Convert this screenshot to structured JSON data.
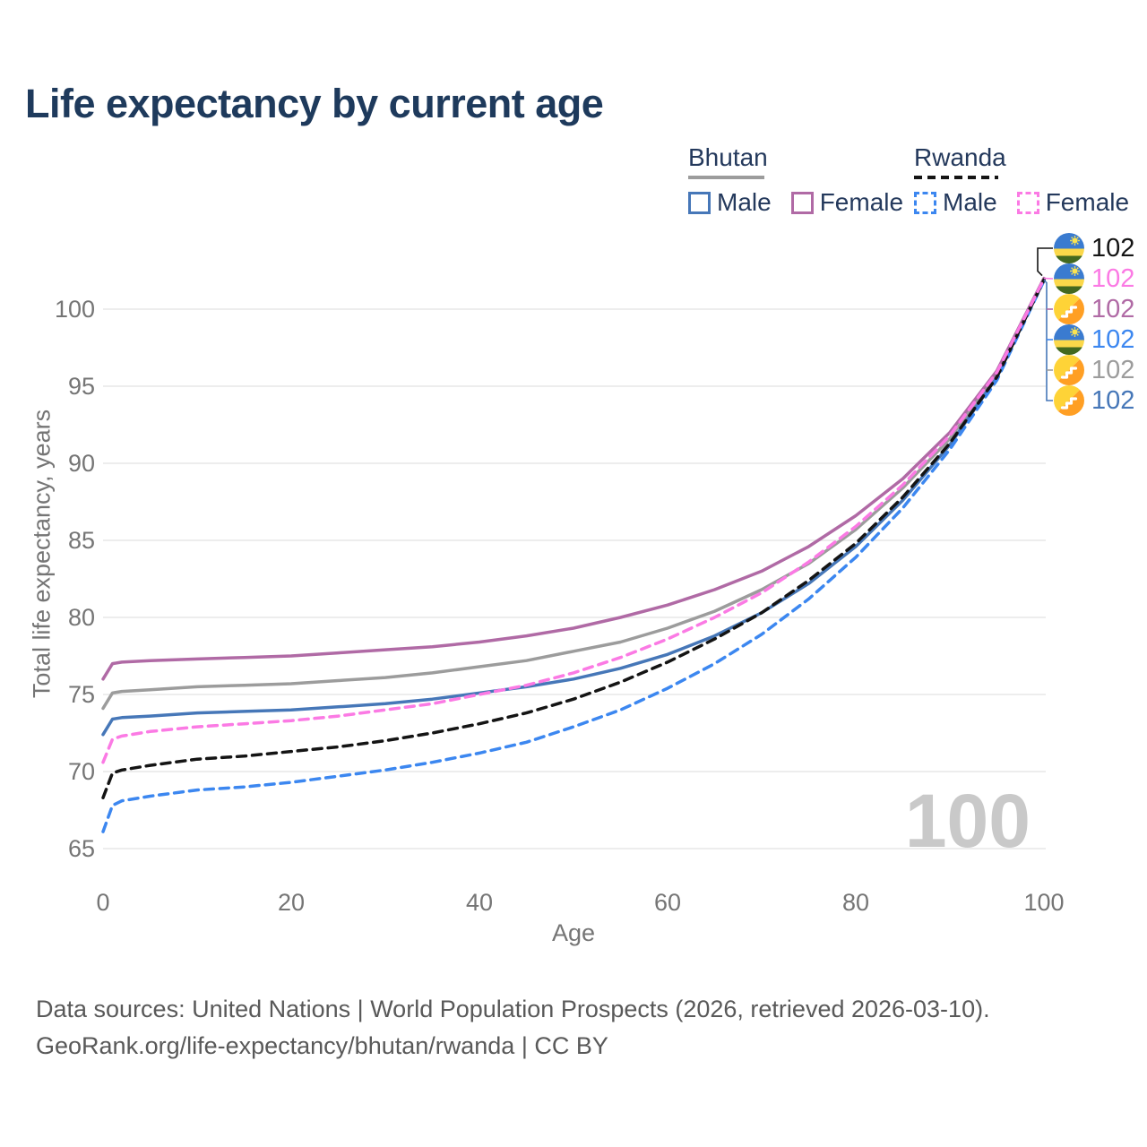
{
  "title": "Life expectancy by current age",
  "legend": {
    "groups": [
      {
        "name": "Bhutan",
        "style": "solid",
        "items": [
          {
            "label": "Male",
            "color": "#4677b8"
          },
          {
            "label": "Female",
            "color": "#b06aa5"
          }
        ]
      },
      {
        "name": "Rwanda",
        "style": "dashed",
        "items": [
          {
            "label": "Male",
            "color": "#3c87f0"
          },
          {
            "label": "Female",
            "color": "#fb7ae4"
          }
        ]
      }
    ]
  },
  "watermark": "100",
  "footer": {
    "line1": "Data sources: United Nations | World Population Prospects (2026, retrieved 2026-03-10).",
    "line2": "GeoRank.org/life-expectancy/bhutan/rwanda | CC BY"
  },
  "colors": {
    "title_text": "#1e3a5c",
    "legend_text": "#24395c",
    "axis_text": "#757575",
    "gridline": "#e7e7e7",
    "watermark": "#c9c9c9",
    "bhutan_male": "#4677b8",
    "bhutan_female": "#b06aa5",
    "bhutan_both": "#9c9c9c",
    "rwanda_male": "#3c87f0",
    "rwanda_female": "#fb7ae4",
    "rwanda_both": "#141414"
  },
  "chart_data": {
    "type": "line",
    "title": "Life expectancy by current age",
    "xlabel": "Age",
    "ylabel": "Total life expectancy, years",
    "xlim": [
      0,
      100
    ],
    "ylim": [
      65,
      102
    ],
    "xticks": [
      0,
      20,
      40,
      60,
      80,
      100
    ],
    "yticks": [
      65,
      70,
      75,
      80,
      85,
      90,
      95,
      100
    ],
    "grid": "horizontal",
    "legend_position": "top-right",
    "x": [
      0,
      1,
      2,
      5,
      10,
      15,
      20,
      25,
      30,
      35,
      40,
      45,
      50,
      55,
      60,
      65,
      70,
      75,
      80,
      85,
      90,
      95,
      100
    ],
    "series": [
      {
        "name": "Bhutan Both",
        "country": "Bhutan",
        "sex": "Both",
        "color": "#9c9c9c",
        "dash": "solid",
        "values": [
          74.1,
          75.1,
          75.2,
          75.3,
          75.5,
          75.6,
          75.7,
          75.9,
          76.1,
          76.4,
          76.8,
          77.2,
          77.8,
          78.4,
          79.3,
          80.4,
          81.8,
          83.5,
          85.7,
          88.4,
          91.6,
          95.8,
          101.95
        ]
      },
      {
        "name": "Bhutan Male",
        "country": "Bhutan",
        "sex": "Male",
        "color": "#4677b8",
        "dash": "solid",
        "values": [
          72.4,
          73.4,
          73.5,
          73.6,
          73.8,
          73.9,
          74.0,
          74.2,
          74.4,
          74.7,
          75.1,
          75.5,
          76.0,
          76.7,
          77.6,
          78.8,
          80.3,
          82.2,
          84.6,
          87.6,
          91.2,
          95.6,
          101.9
        ]
      },
      {
        "name": "Bhutan Female",
        "country": "Bhutan",
        "sex": "Female",
        "color": "#b06aa5",
        "dash": "solid",
        "values": [
          76.0,
          77.0,
          77.1,
          77.2,
          77.3,
          77.4,
          77.5,
          77.7,
          77.9,
          78.1,
          78.4,
          78.8,
          79.3,
          80.0,
          80.8,
          81.8,
          83.0,
          84.6,
          86.6,
          89.0,
          92.0,
          96.0,
          102.0
        ]
      },
      {
        "name": "Rwanda Male",
        "country": "Rwanda",
        "sex": "Male",
        "color": "#3c87f0",
        "dash": "dashed",
        "values": [
          66.1,
          67.8,
          68.1,
          68.4,
          68.8,
          69.0,
          69.3,
          69.7,
          70.1,
          70.6,
          71.2,
          71.9,
          72.9,
          74.0,
          75.4,
          77.0,
          78.9,
          81.2,
          83.9,
          87.1,
          90.9,
          95.4,
          101.85
        ]
      },
      {
        "name": "Rwanda Both",
        "country": "Rwanda",
        "sex": "Both",
        "color": "#141414",
        "dash": "dashed",
        "values": [
          68.3,
          69.9,
          70.1,
          70.4,
          70.8,
          71.0,
          71.3,
          71.6,
          72.0,
          72.5,
          73.1,
          73.8,
          74.7,
          75.8,
          77.1,
          78.6,
          80.3,
          82.4,
          84.8,
          87.8,
          91.3,
          95.6,
          101.9
        ]
      },
      {
        "name": "Rwanda Female",
        "country": "Rwanda",
        "sex": "Female",
        "color": "#fb7ae4",
        "dash": "dashed",
        "values": [
          70.6,
          72.1,
          72.3,
          72.6,
          72.9,
          73.1,
          73.3,
          73.6,
          74.0,
          74.4,
          75.0,
          75.6,
          76.4,
          77.4,
          78.6,
          80.0,
          81.6,
          83.6,
          85.9,
          88.6,
          91.8,
          95.9,
          101.95
        ]
      }
    ]
  },
  "callouts": [
    {
      "flag": "rwanda",
      "value": "102",
      "color": "#141414",
      "series": "Rwanda Both"
    },
    {
      "flag": "rwanda",
      "value": "102",
      "color": "#fb7ae4",
      "series": "Rwanda Female"
    },
    {
      "flag": "bhutan",
      "value": "102",
      "color": "#b06aa5",
      "series": "Bhutan Female"
    },
    {
      "flag": "rwanda",
      "value": "102",
      "color": "#3c87f0",
      "series": "Rwanda Male"
    },
    {
      "flag": "bhutan",
      "value": "102",
      "color": "#9c9c9c",
      "series": "Bhutan Both"
    },
    {
      "flag": "bhutan",
      "value": "102",
      "color": "#4677b8",
      "series": "Bhutan Male"
    }
  ]
}
